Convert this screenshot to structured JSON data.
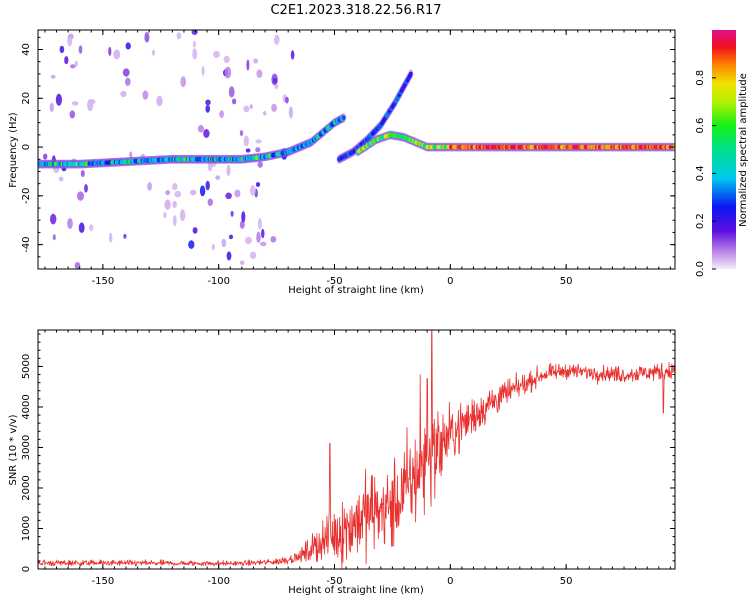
{
  "title": "C2E1.2023.318.22.56.R17",
  "chart_data": [
    {
      "type": "heatmap",
      "xlabel": "Height of straight line (km)",
      "ylabel": "Frequency (Hz)",
      "xlim": [
        -178,
        97
      ],
      "ylim": [
        -50,
        48
      ],
      "x_ticks": [
        -150,
        -100,
        -50,
        0,
        50
      ],
      "y_ticks": [
        -40,
        -20,
        0,
        20,
        40
      ],
      "colorbar": {
        "label": "Normalized spectral amplitude",
        "range": [
          0.0,
          1.0
        ],
        "ticks": [
          "0.0",
          "0.2",
          "0.4",
          "0.6",
          "0.8"
        ]
      },
      "noise_regions": [
        {
          "x_from": -178,
          "x_to": -150,
          "density": 0.35
        },
        {
          "x_from": -150,
          "x_to": -115,
          "density": 0.25
        },
        {
          "x_from": -112,
          "x_to": -75,
          "density": 0.55
        },
        {
          "x_from": -75,
          "x_to": -68,
          "density": 0.3
        }
      ],
      "ridges": [
        {
          "points": [
            [
              -178,
              -7
            ],
            [
              -160,
              -7
            ],
            [
              -140,
              -6
            ],
            [
              -120,
              -5
            ],
            [
              -105,
              -5
            ],
            [
              -90,
              -5
            ],
            [
              -80,
              -4
            ],
            [
              -70,
              -2
            ],
            [
              -60,
              2
            ],
            [
              -50,
              10
            ],
            [
              -46,
              12
            ]
          ],
          "amplitude": 0.45
        },
        {
          "points": [
            [
              -48,
              -5
            ],
            [
              -42,
              -2
            ],
            [
              -36,
              3
            ],
            [
              -30,
              9
            ],
            [
              -24,
              18
            ],
            [
              -17,
              30
            ]
          ],
          "amplitude": 0.35
        },
        {
          "points": [
            [
              -40,
              -2
            ],
            [
              -32,
              3
            ],
            [
              -26,
              5
            ],
            [
              -20,
              4
            ],
            [
              -15,
              2
            ],
            [
              -10,
              0
            ],
            [
              -5,
              0
            ],
            [
              0,
              0
            ],
            [
              97,
              0
            ]
          ],
          "amplitude": 0.8
        }
      ]
    },
    {
      "type": "line",
      "xlabel": "Height of straight line (km)",
      "ylabel": "SNR (10 * v/v)",
      "xlim": [
        -178,
        97
      ],
      "ylim": [
        0,
        5900
      ],
      "x_ticks": [
        -150,
        -100,
        -50,
        0,
        50
      ],
      "y_ticks": [
        0,
        1000,
        2000,
        3000,
        4000,
        5000
      ],
      "color": "#e8302e",
      "envelope": [
        {
          "x": -178,
          "mean": 150,
          "noise": 80
        },
        {
          "x": -150,
          "mean": 150,
          "noise": 70
        },
        {
          "x": -120,
          "mean": 140,
          "noise": 70
        },
        {
          "x": -90,
          "mean": 140,
          "noise": 60
        },
        {
          "x": -75,
          "mean": 180,
          "noise": 80
        },
        {
          "x": -65,
          "mean": 300,
          "noise": 150
        },
        {
          "x": -55,
          "mean": 700,
          "noise": 500
        },
        {
          "x": -45,
          "mean": 1000,
          "noise": 900
        },
        {
          "x": -35,
          "mean": 1400,
          "noise": 1000
        },
        {
          "x": -25,
          "mean": 1500,
          "noise": 1100
        },
        {
          "x": -15,
          "mean": 2300,
          "noise": 1200
        },
        {
          "x": -10,
          "mean": 2700,
          "noise": 1300
        },
        {
          "x": 0,
          "mean": 3300,
          "noise": 700
        },
        {
          "x": 10,
          "mean": 3800,
          "noise": 500
        },
        {
          "x": 20,
          "mean": 4200,
          "noise": 400
        },
        {
          "x": 30,
          "mean": 4500,
          "noise": 250
        },
        {
          "x": 40,
          "mean": 4800,
          "noise": 200
        },
        {
          "x": 50,
          "mean": 4900,
          "noise": 180
        },
        {
          "x": 60,
          "mean": 4850,
          "noise": 180
        },
        {
          "x": 75,
          "mean": 4800,
          "noise": 200
        },
        {
          "x": 97,
          "mean": 4900,
          "noise": 220
        }
      ],
      "peaks": [
        [
          -8,
          5900
        ],
        [
          -10,
          4700
        ],
        [
          -13,
          4800
        ],
        [
          92,
          3850
        ],
        [
          -52,
          3100
        ]
      ]
    }
  ]
}
